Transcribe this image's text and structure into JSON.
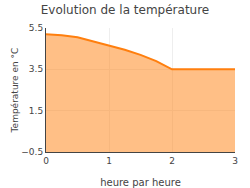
{
  "chart_data": {
    "type": "area",
    "title": "Evolution de la température",
    "xlabel": "heure par heure",
    "ylabel": "Température en °C",
    "x": [
      0,
      0.25,
      0.5,
      0.75,
      1.0,
      1.25,
      1.5,
      1.75,
      2.0,
      2.5,
      3.0
    ],
    "values": [
      5.2,
      5.15,
      5.05,
      4.85,
      4.65,
      4.45,
      4.2,
      3.9,
      3.5,
      3.5,
      3.5
    ],
    "xlim": [
      0,
      3
    ],
    "ylim": [
      -0.5,
      5.5
    ],
    "xticks": [
      0,
      1,
      2,
      3
    ],
    "yticks": [
      -0.5,
      1.5,
      3.5,
      5.5
    ],
    "grid": true
  }
}
